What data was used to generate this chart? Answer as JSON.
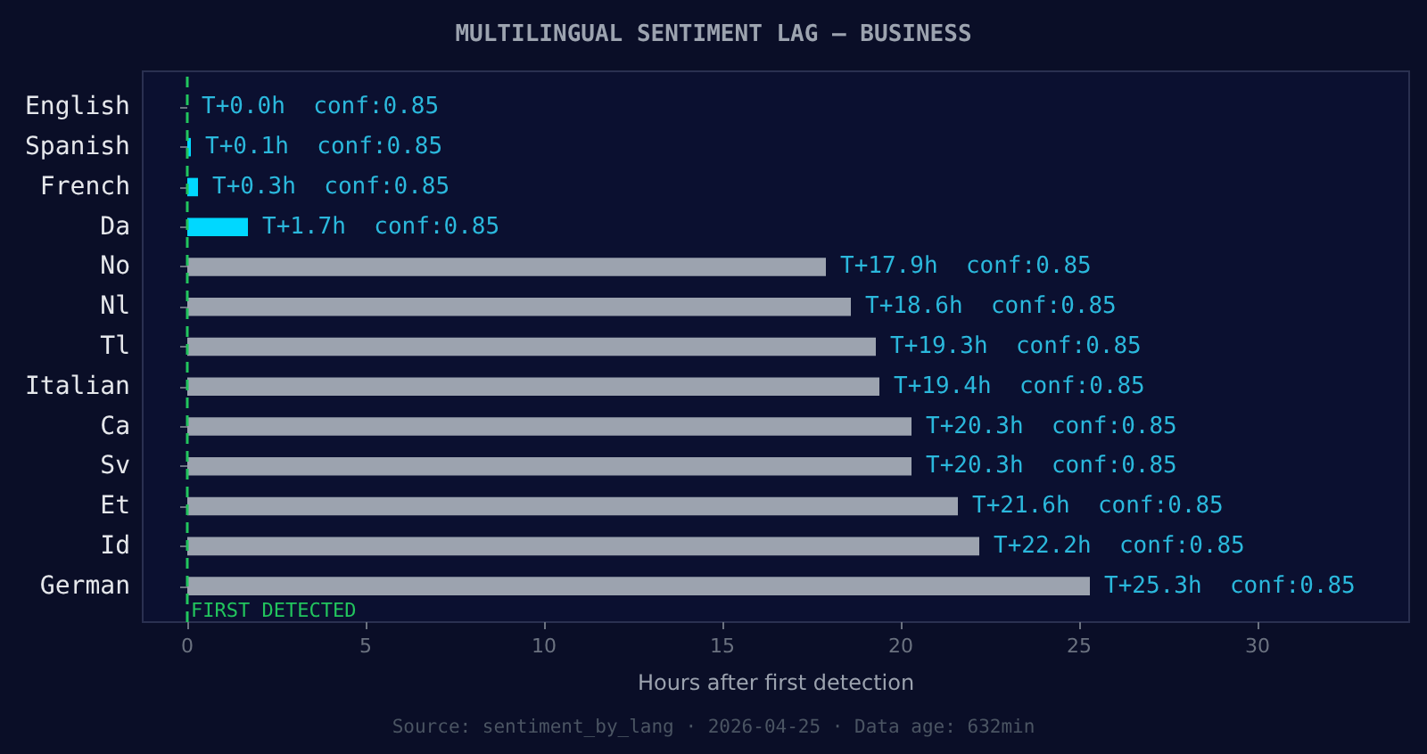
{
  "chart_data": {
    "type": "bar",
    "orientation": "horizontal",
    "title": "MULTILINGUAL SENTIMENT LAG — BUSINESS",
    "xlabel": "Hours after first detection",
    "categories": [
      "English",
      "Spanish",
      "French",
      "Da",
      "No",
      "Nl",
      "Tl",
      "Italian",
      "Ca",
      "Sv",
      "Et",
      "Id",
      "German"
    ],
    "values": [
      0.0,
      0.1,
      0.3,
      1.7,
      17.9,
      18.6,
      19.3,
      19.4,
      20.3,
      20.3,
      21.6,
      22.2,
      25.3
    ],
    "colors": [
      "#00d8ff",
      "#00d8ff",
      "#00d8ff",
      "#00d8ff",
      "#9ca3af",
      "#9ca3af",
      "#9ca3af",
      "#9ca3af",
      "#9ca3af",
      "#9ca3af",
      "#9ca3af",
      "#9ca3af",
      "#9ca3af"
    ],
    "value_labels": [
      "T+0.0h  conf:0.85",
      "T+0.1h  conf:0.85",
      "T+0.3h  conf:0.85",
      "T+1.7h  conf:0.85",
      "T+17.9h  conf:0.85",
      "T+18.6h  conf:0.85",
      "T+19.3h  conf:0.85",
      "T+19.4h  conf:0.85",
      "T+20.3h  conf:0.85",
      "T+20.3h  conf:0.85",
      "T+21.6h  conf:0.85",
      "T+22.2h  conf:0.85",
      "T+25.3h  conf:0.85"
    ],
    "xlim": [
      -1.25,
      34.25
    ],
    "xticks": [
      0,
      5,
      10,
      15,
      20,
      25,
      30
    ],
    "ref_lines": [
      {
        "axis": "x",
        "value": 0,
        "label": "FIRST DETECTED",
        "color": "#22c55e",
        "line_style": "dashed"
      }
    ],
    "annotations": [
      "Source: sentiment_by_lang · 2026-04-25 · Data age: 632min"
    ]
  }
}
